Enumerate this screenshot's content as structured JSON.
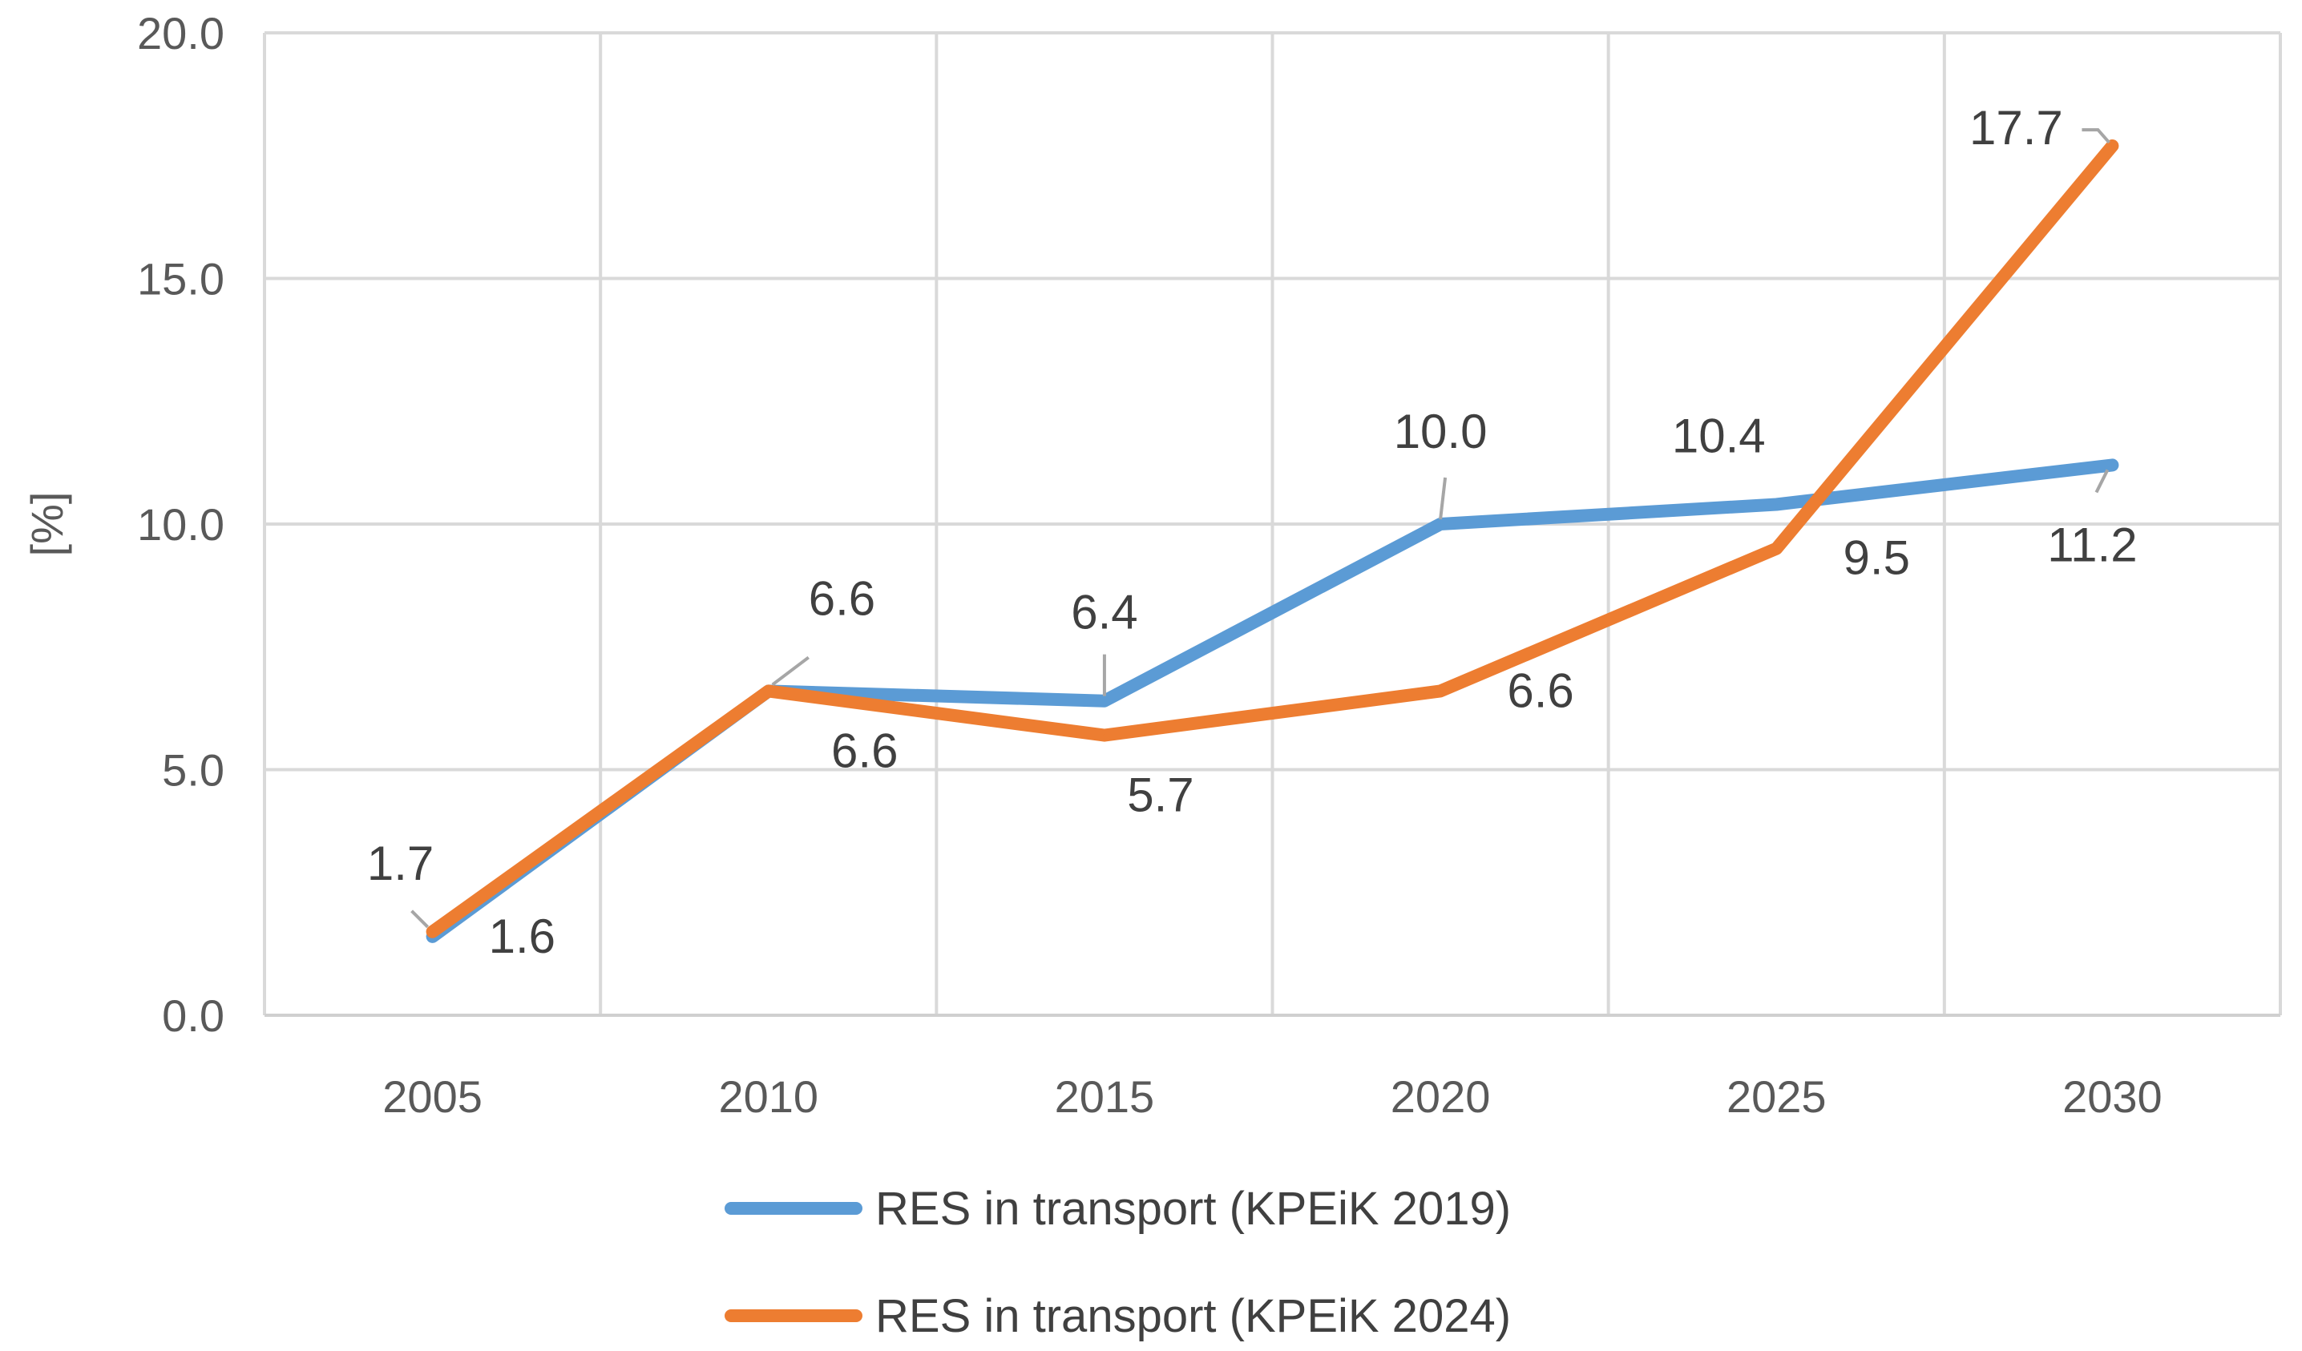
{
  "chart_data": {
    "type": "line",
    "title": "",
    "xlabel": "",
    "ylabel": "[%]",
    "x": [
      "2005",
      "2010",
      "2015",
      "2020",
      "2025",
      "2030"
    ],
    "ylim": [
      0,
      20
    ],
    "yticks": [
      "0.0",
      "5.0",
      "10.0",
      "15.0",
      "20.0"
    ],
    "grid": true,
    "legend_position": "bottom",
    "series": [
      {
        "name": "RES in transport (KPEiK 2019)",
        "color": "#5b9bd5",
        "values": [
          1.6,
          6.6,
          6.4,
          10.0,
          10.4,
          11.2
        ],
        "labels": [
          "1.6",
          "6.6",
          "6.4",
          "10.0",
          "10.4",
          "11.2"
        ]
      },
      {
        "name": "RES in transport (KPEiK 2024)",
        "color": "#ed7d31",
        "values": [
          1.7,
          6.6,
          5.7,
          6.6,
          9.5,
          17.7
        ],
        "labels": [
          "1.7",
          "6.6",
          "5.7",
          "6.6",
          "9.5",
          "17.7"
        ]
      }
    ]
  }
}
